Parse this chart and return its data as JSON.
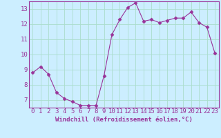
{
  "x": [
    0,
    1,
    2,
    3,
    4,
    5,
    6,
    7,
    8,
    9,
    10,
    11,
    12,
    13,
    14,
    15,
    16,
    17,
    18,
    19,
    20,
    21,
    22,
    23
  ],
  "y": [
    8.8,
    9.2,
    8.7,
    7.5,
    7.1,
    6.9,
    6.65,
    6.65,
    6.65,
    8.6,
    11.3,
    12.3,
    13.1,
    13.4,
    12.2,
    12.3,
    12.1,
    12.25,
    12.4,
    12.4,
    12.8,
    12.1,
    11.8,
    10.1
  ],
  "line_color": "#993399",
  "marker": "D",
  "marker_size": 2.5,
  "bg_color": "#cceeff",
  "grid_color": "#aaddcc",
  "xlabel": "Windchill (Refroidissement éolien,°C)",
  "xlabel_fontsize": 6.5,
  "tick_fontsize": 6.5,
  "ylim": [
    6.5,
    13.5
  ],
  "xlim": [
    -0.5,
    23.5
  ],
  "yticks": [
    7,
    8,
    9,
    10,
    11,
    12,
    13
  ],
  "xticks": [
    0,
    1,
    2,
    3,
    4,
    5,
    6,
    7,
    8,
    9,
    10,
    11,
    12,
    13,
    14,
    15,
    16,
    17,
    18,
    19,
    20,
    21,
    22,
    23
  ]
}
